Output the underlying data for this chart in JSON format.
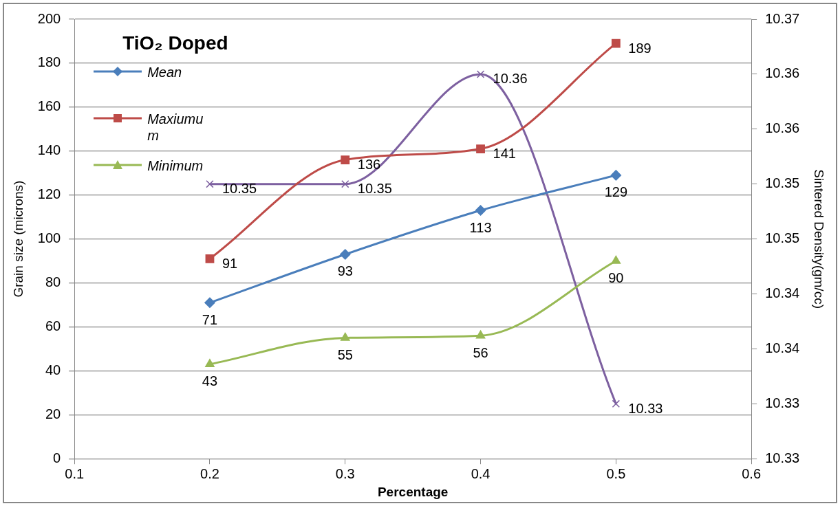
{
  "chart_data": {
    "type": "line",
    "title": "TiO₂ Doped",
    "xlabel": "Percentage",
    "ylabel": "Grain size (microns)",
    "y2label": "Sintered Density(gm/cc)",
    "x": [
      0.2,
      0.3,
      0.4,
      0.5
    ],
    "series": [
      {
        "name": "Mean",
        "color": "#4a7ebb",
        "marker": "diamond",
        "values": [
          71,
          93,
          113,
          129
        ]
      },
      {
        "name": "Maxiumum",
        "color": "#be4b48",
        "marker": "square",
        "values": [
          91,
          136,
          141,
          189
        ]
      },
      {
        "name": "Minimum",
        "color": "#98b954",
        "marker": "triangle",
        "values": [
          43,
          55,
          56,
          90
        ]
      },
      {
        "color": "#7d60a0",
        "marker": "cross",
        "axis": "y2",
        "values": [
          10.35,
          10.35,
          10.36,
          10.33
        ]
      }
    ],
    "xlim": [
      0.1,
      0.6
    ],
    "xticks": [
      0.1,
      0.2,
      0.3,
      0.4,
      0.5,
      0.6
    ],
    "ylim": [
      0,
      200
    ],
    "yticks": [
      0,
      20,
      40,
      60,
      80,
      100,
      120,
      140,
      160,
      180,
      200
    ],
    "y2lim": [
      10.325,
      10.365
    ],
    "y2ticks": [
      {
        "value": 10.325,
        "label": "10.33"
      },
      {
        "value": 10.33,
        "label": "10.33"
      },
      {
        "value": 10.335,
        "label": "10.34"
      },
      {
        "value": 10.34,
        "label": "10.34"
      },
      {
        "value": 10.345,
        "label": "10.35"
      },
      {
        "value": 10.35,
        "label": "10.35"
      },
      {
        "value": 10.355,
        "label": "10.36"
      },
      {
        "value": 10.36,
        "label": "10.36"
      },
      {
        "value": 10.365,
        "label": "10.37"
      }
    ],
    "grid": "y",
    "legend": "top left",
    "data_labels": true,
    "line_style": "solid"
  }
}
